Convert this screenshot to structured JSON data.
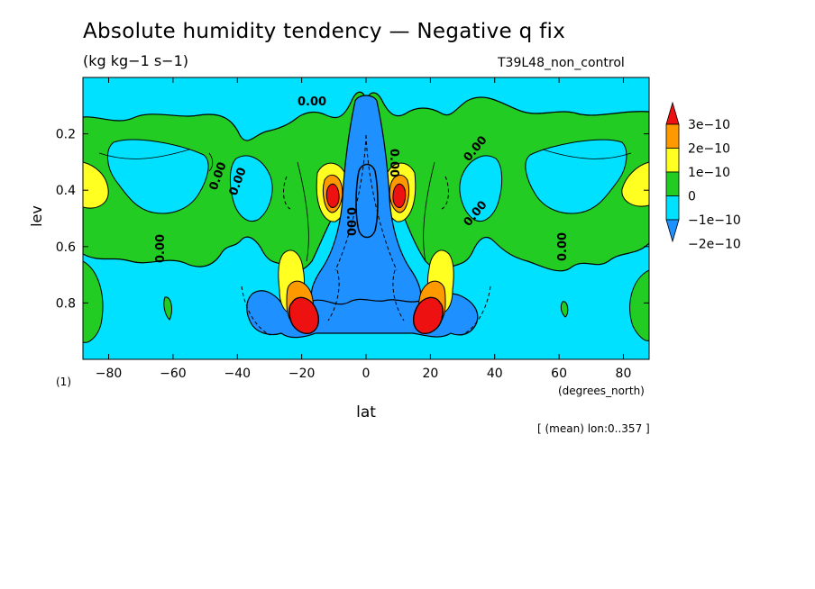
{
  "header": {
    "title": "Absolute humidity tendency — Negative q fix",
    "units": "(kg kg−1 s−1)",
    "run_name": "T39L48_non_control"
  },
  "footer": {
    "averaging_note": "[ (mean) lon:0..357 ]"
  },
  "panel_label": "(1)",
  "chart_data": {
    "type": "heatmap",
    "title": "Absolute humidity tendency — Negative q fix",
    "subtitle": "(kg kg−1 s−1)",
    "xlabel": "lat",
    "xunits": "(degrees_north)",
    "ylabel": "lev",
    "xlim": [
      -88,
      88
    ],
    "ylim": [
      1.0,
      0.0
    ],
    "x_ticks": [
      -80,
      -60,
      -40,
      -20,
      0,
      20,
      40,
      60,
      80
    ],
    "x_tick_labels": [
      "−80",
      "−60",
      "−40",
      "−20",
      "0",
      "20",
      "40",
      "60",
      "80"
    ],
    "y_ticks": [
      0.2,
      0.4,
      0.6,
      0.8
    ],
    "y_tick_labels": [
      "0.2",
      "0.4",
      "0.6",
      "0.8"
    ],
    "contour_label": "0.00",
    "colorbar": {
      "levels": [
        -2e-10,
        -1e-10,
        0,
        1e-10,
        2e-10,
        3e-10
      ],
      "labels": [
        "−2e−10",
        "−1e−10",
        "0",
        "1e−10",
        "2e−10",
        "3e−10"
      ],
      "colors": [
        "#1e90ff",
        "#00e0ff",
        "#22cc22",
        "#ffff22",
        "#ff9900",
        "#ee1111"
      ]
    },
    "background_value_color": "#00e0ff",
    "features": [
      {
        "kind": "band",
        "lat_range": [
          -88,
          88
        ],
        "lev_range": [
          0.1,
          0.75
        ],
        "value_class": "0 to 1e-10",
        "note": "positive green band"
      },
      {
        "kind": "max",
        "lat": -10,
        "lev": 0.43,
        "value_class": ">3e-10"
      },
      {
        "kind": "max",
        "lat": 10,
        "lev": 0.43,
        "value_class": ">3e-10"
      },
      {
        "kind": "max",
        "lat": -18,
        "lev": 0.85,
        "value_class": ">3e-10"
      },
      {
        "kind": "max",
        "lat": 18,
        "lev": 0.85,
        "value_class": ">3e-10"
      },
      {
        "kind": "max",
        "lat": -85,
        "lev": 0.4,
        "value_class": "1e-10 to 2e-10"
      },
      {
        "kind": "max",
        "lat": 85,
        "lev": 0.4,
        "value_class": "1e-10 to 2e-10"
      },
      {
        "kind": "min",
        "lat": 0,
        "lev": 0.35,
        "value_class": "<-2e-10"
      },
      {
        "kind": "min_band",
        "lat_range": [
          -33,
          33
        ],
        "lev_range": [
          0.8,
          0.92
        ],
        "value_class": "<-2e-10"
      }
    ]
  }
}
